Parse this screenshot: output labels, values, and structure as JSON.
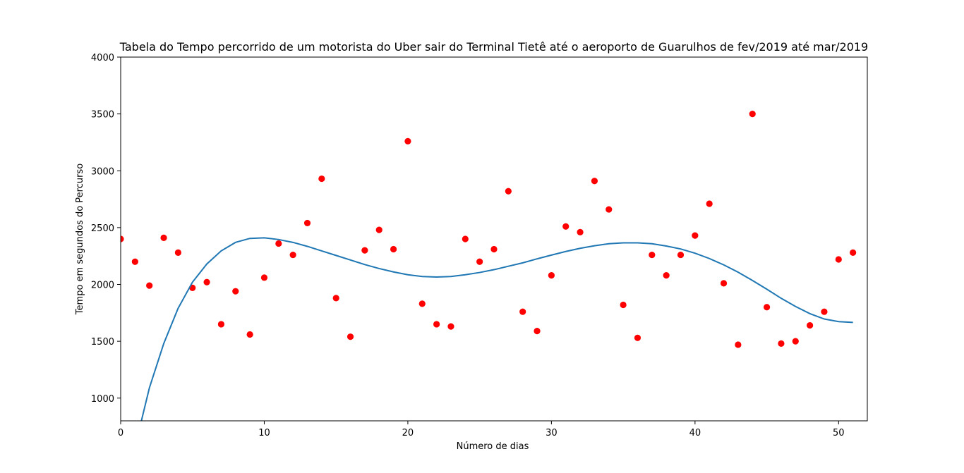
{
  "chart_data": {
    "type": "scatter",
    "title": "Tabela do Tempo percorrido de um motorista do Uber sair do Terminal Tietê até o aeroporto de Guarulhos de fev/2019 até mar/2019",
    "xlabel": "Número de dias",
    "ylabel": "Tempo em segundos do Percurso",
    "xlim": [
      0,
      52
    ],
    "ylim": [
      800,
      4000
    ],
    "xticks": [
      0,
      10,
      20,
      30,
      40,
      50
    ],
    "yticks": [
      1000,
      1500,
      2000,
      2500,
      3000,
      3500,
      4000
    ],
    "grid": false,
    "series": [
      {
        "type": "scatter",
        "color": "#ff0000",
        "x": [
          0,
          1,
          2,
          3,
          4,
          5,
          6,
          7,
          8,
          9,
          10,
          11,
          12,
          13,
          14,
          15,
          16,
          17,
          18,
          19,
          20,
          21,
          22,
          23,
          24,
          25,
          26,
          27,
          28,
          29,
          30,
          31,
          32,
          33,
          34,
          35,
          36,
          37,
          38,
          39,
          40,
          41,
          42,
          43,
          44,
          45,
          46,
          47,
          48,
          49,
          50,
          51
        ],
        "y": [
          2400,
          2200,
          1990,
          2410,
          2280,
          1970,
          2020,
          1650,
          1940,
          1560,
          2060,
          2360,
          2260,
          2540,
          2930,
          1880,
          1540,
          2300,
          2480,
          2310,
          3260,
          1830,
          1650,
          1630,
          2400,
          2200,
          2310,
          2820,
          1760,
          1590,
          2080,
          2510,
          2460,
          2910,
          2660,
          1820,
          1530,
          2260,
          2080,
          2260,
          2430,
          2710,
          2010,
          1470,
          3500,
          1800,
          1480,
          1500,
          1640,
          1760,
          2220,
          2280
        ]
      },
      {
        "type": "line",
        "color": "#1f77b4",
        "x": [
          1,
          1.5,
          2,
          3,
          4,
          5,
          6,
          7,
          8,
          9,
          10,
          11,
          12,
          13,
          14,
          15,
          16,
          17,
          18,
          19,
          20,
          21,
          22,
          23,
          24,
          25,
          26,
          27,
          28,
          29,
          30,
          31,
          32,
          33,
          34,
          35,
          36,
          37,
          38,
          39,
          40,
          41,
          42,
          43,
          44,
          45,
          46,
          47,
          48,
          49,
          50,
          51
        ],
        "y": [
          560,
          830,
          1090,
          1480,
          1790,
          2020,
          2180,
          2295,
          2370,
          2405,
          2410,
          2395,
          2370,
          2335,
          2295,
          2255,
          2215,
          2175,
          2140,
          2110,
          2085,
          2070,
          2065,
          2070,
          2085,
          2105,
          2130,
          2160,
          2190,
          2225,
          2258,
          2290,
          2318,
          2340,
          2358,
          2366,
          2366,
          2358,
          2338,
          2312,
          2275,
          2228,
          2172,
          2108,
          2035,
          1958,
          1878,
          1806,
          1743,
          1696,
          1673,
          1666
        ]
      }
    ]
  }
}
